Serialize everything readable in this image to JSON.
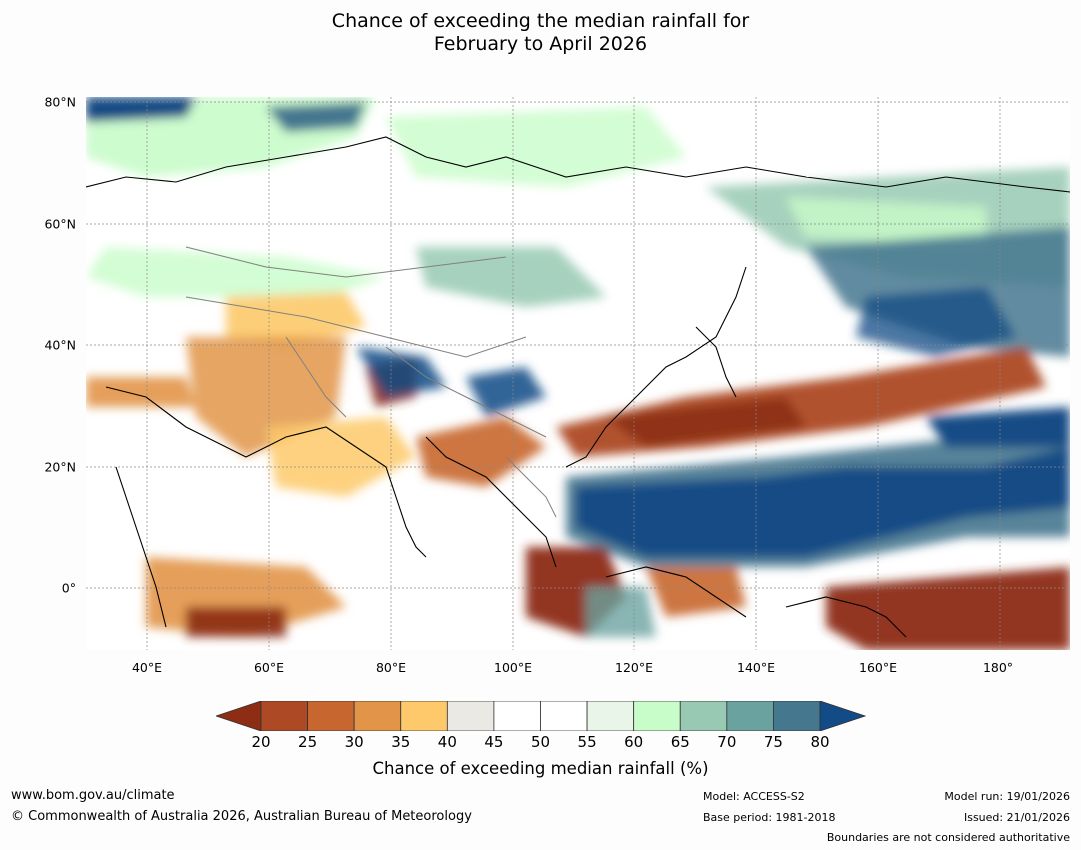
{
  "title": {
    "line1": "Chance of exceeding the median rainfall for",
    "line2": "February to April 2026"
  },
  "map": {
    "lat_labels": [
      "80°N",
      "60°N",
      "40°N",
      "20°N",
      "0°"
    ],
    "lon_labels": [
      "40°E",
      "60°E",
      "80°E",
      "100°E",
      "120°E",
      "140°E",
      "160°E",
      "180°"
    ],
    "lat_range": [
      -10,
      81
    ],
    "lon_range": [
      30,
      191
    ]
  },
  "colorbar": {
    "ticks": [
      "20",
      "25",
      "30",
      "35",
      "40",
      "45",
      "50",
      "55",
      "60",
      "65",
      "70",
      "75",
      "80"
    ],
    "colors": [
      "#8c2d14",
      "#ad4a25",
      "#c8662f",
      "#e29548",
      "#fdc96a",
      "#ebe9e4",
      "#ffffff",
      "#ffffff",
      "#e8f5e8",
      "#c8fcc9",
      "#97c9b3",
      "#6aa2a0",
      "#45778f",
      "#124b85"
    ],
    "label": "Chance of exceeding median rainfall (%)"
  },
  "footer": {
    "url": "www.bom.gov.au/climate",
    "copyright": "© Commonwealth of Australia 2026, Australian Bureau of Meteorology",
    "model": "Model: ACCESS-S2",
    "base_period": "Base period: 1981-2018",
    "model_run": "Model run: 19/01/2026",
    "issued": "Issued: 21/01/2026",
    "disclaimer": "Boundaries are not considered authoritative"
  }
}
